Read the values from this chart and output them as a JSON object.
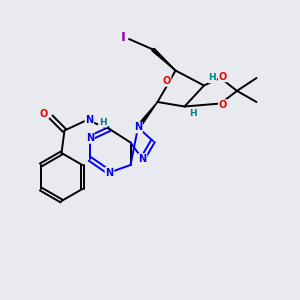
{
  "background_color": "#e8eaf0",
  "bond_color": "#000000",
  "atom_colors": {
    "N": "#0000ee",
    "O": "#ee0000",
    "I": "#9900aa",
    "H_stereo": "#008080",
    "C": "#000000"
  },
  "figsize": [
    3.0,
    3.0
  ],
  "dpi": 100,
  "xlim": [
    0,
    10
  ],
  "ylim": [
    0,
    10
  ]
}
